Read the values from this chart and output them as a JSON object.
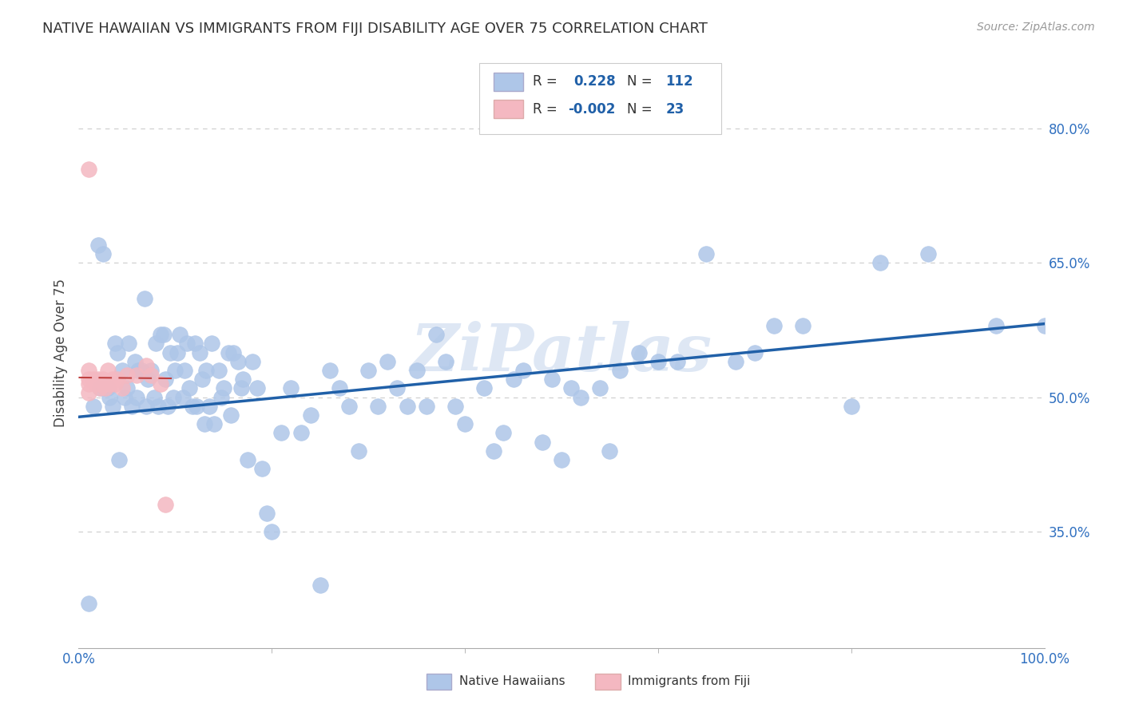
{
  "title": "NATIVE HAWAIIAN VS IMMIGRANTS FROM FIJI DISABILITY AGE OVER 75 CORRELATION CHART",
  "source": "Source: ZipAtlas.com",
  "ylabel": "Disability Age Over 75",
  "y_tick_vals": [
    0.35,
    0.5,
    0.65,
    0.8
  ],
  "y_tick_labels": [
    "35.0%",
    "50.0%",
    "65.0%",
    "80.0%"
  ],
  "watermark": "ZiPatlas",
  "nh_x": [
    0.01,
    0.015,
    0.02,
    0.022,
    0.025,
    0.028,
    0.03,
    0.032,
    0.035,
    0.038,
    0.04,
    0.042,
    0.045,
    0.048,
    0.05,
    0.052,
    0.055,
    0.058,
    0.06,
    0.062,
    0.065,
    0.068,
    0.07,
    0.072,
    0.075,
    0.078,
    0.08,
    0.082,
    0.085,
    0.088,
    0.09,
    0.092,
    0.095,
    0.098,
    0.1,
    0.102,
    0.105,
    0.108,
    0.11,
    0.112,
    0.115,
    0.118,
    0.12,
    0.122,
    0.125,
    0.128,
    0.13,
    0.132,
    0.135,
    0.138,
    0.14,
    0.145,
    0.148,
    0.15,
    0.155,
    0.158,
    0.16,
    0.165,
    0.168,
    0.17,
    0.175,
    0.18,
    0.185,
    0.19,
    0.195,
    0.2,
    0.21,
    0.22,
    0.23,
    0.24,
    0.25,
    0.26,
    0.27,
    0.28,
    0.29,
    0.3,
    0.31,
    0.32,
    0.33,
    0.34,
    0.35,
    0.36,
    0.37,
    0.38,
    0.39,
    0.4,
    0.42,
    0.43,
    0.44,
    0.45,
    0.46,
    0.48,
    0.49,
    0.5,
    0.51,
    0.52,
    0.54,
    0.55,
    0.56,
    0.58,
    0.6,
    0.62,
    0.65,
    0.68,
    0.7,
    0.72,
    0.75,
    0.8,
    0.83,
    0.88,
    0.95,
    1.0
  ],
  "nh_y": [
    0.27,
    0.49,
    0.67,
    0.51,
    0.66,
    0.51,
    0.51,
    0.5,
    0.49,
    0.56,
    0.55,
    0.43,
    0.53,
    0.5,
    0.51,
    0.56,
    0.49,
    0.54,
    0.5,
    0.53,
    0.53,
    0.61,
    0.49,
    0.52,
    0.53,
    0.5,
    0.56,
    0.49,
    0.57,
    0.57,
    0.52,
    0.49,
    0.55,
    0.5,
    0.53,
    0.55,
    0.57,
    0.5,
    0.53,
    0.56,
    0.51,
    0.49,
    0.56,
    0.49,
    0.55,
    0.52,
    0.47,
    0.53,
    0.49,
    0.56,
    0.47,
    0.53,
    0.5,
    0.51,
    0.55,
    0.48,
    0.55,
    0.54,
    0.51,
    0.52,
    0.43,
    0.54,
    0.51,
    0.42,
    0.37,
    0.35,
    0.46,
    0.51,
    0.46,
    0.48,
    0.29,
    0.53,
    0.51,
    0.49,
    0.44,
    0.53,
    0.49,
    0.54,
    0.51,
    0.49,
    0.53,
    0.49,
    0.57,
    0.54,
    0.49,
    0.47,
    0.51,
    0.44,
    0.46,
    0.52,
    0.53,
    0.45,
    0.52,
    0.43,
    0.51,
    0.5,
    0.51,
    0.44,
    0.53,
    0.55,
    0.54,
    0.54,
    0.66,
    0.54,
    0.55,
    0.58,
    0.58,
    0.49,
    0.65,
    0.66,
    0.58,
    0.58
  ],
  "fiji_x": [
    0.01,
    0.01,
    0.01,
    0.01,
    0.01,
    0.015,
    0.018,
    0.02,
    0.022,
    0.025,
    0.028,
    0.03,
    0.032,
    0.035,
    0.038,
    0.04,
    0.045,
    0.05,
    0.06,
    0.07,
    0.075,
    0.085,
    0.09
  ],
  "fiji_y": [
    0.755,
    0.53,
    0.52,
    0.515,
    0.505,
    0.52,
    0.515,
    0.52,
    0.51,
    0.52,
    0.51,
    0.53,
    0.515,
    0.52,
    0.515,
    0.52,
    0.51,
    0.525,
    0.525,
    0.535,
    0.525,
    0.515,
    0.38
  ],
  "nh_trend_x": [
    0.0,
    1.0
  ],
  "nh_trend_y": [
    0.478,
    0.582
  ],
  "fiji_trend_x": [
    0.0,
    0.1
  ],
  "fiji_trend_y": [
    0.522,
    0.521
  ],
  "xlim": [
    0.0,
    1.0
  ],
  "ylim": [
    0.22,
    0.88
  ],
  "scatter_color_nh": "#aec6e8",
  "scatter_color_fiji": "#f4b8c1",
  "trendline_color_nh": "#2060a8",
  "trendline_color_fiji": "#c04040",
  "grid_color": "#cccccc",
  "background_color": "#ffffff",
  "title_color": "#333333",
  "title_fontsize": 13,
  "axis_label_color": "#3070c0",
  "watermark_color": "#c8d8ee",
  "legend_r_color": "#2060a8",
  "source_text": "Source: ZipAtlas.com"
}
